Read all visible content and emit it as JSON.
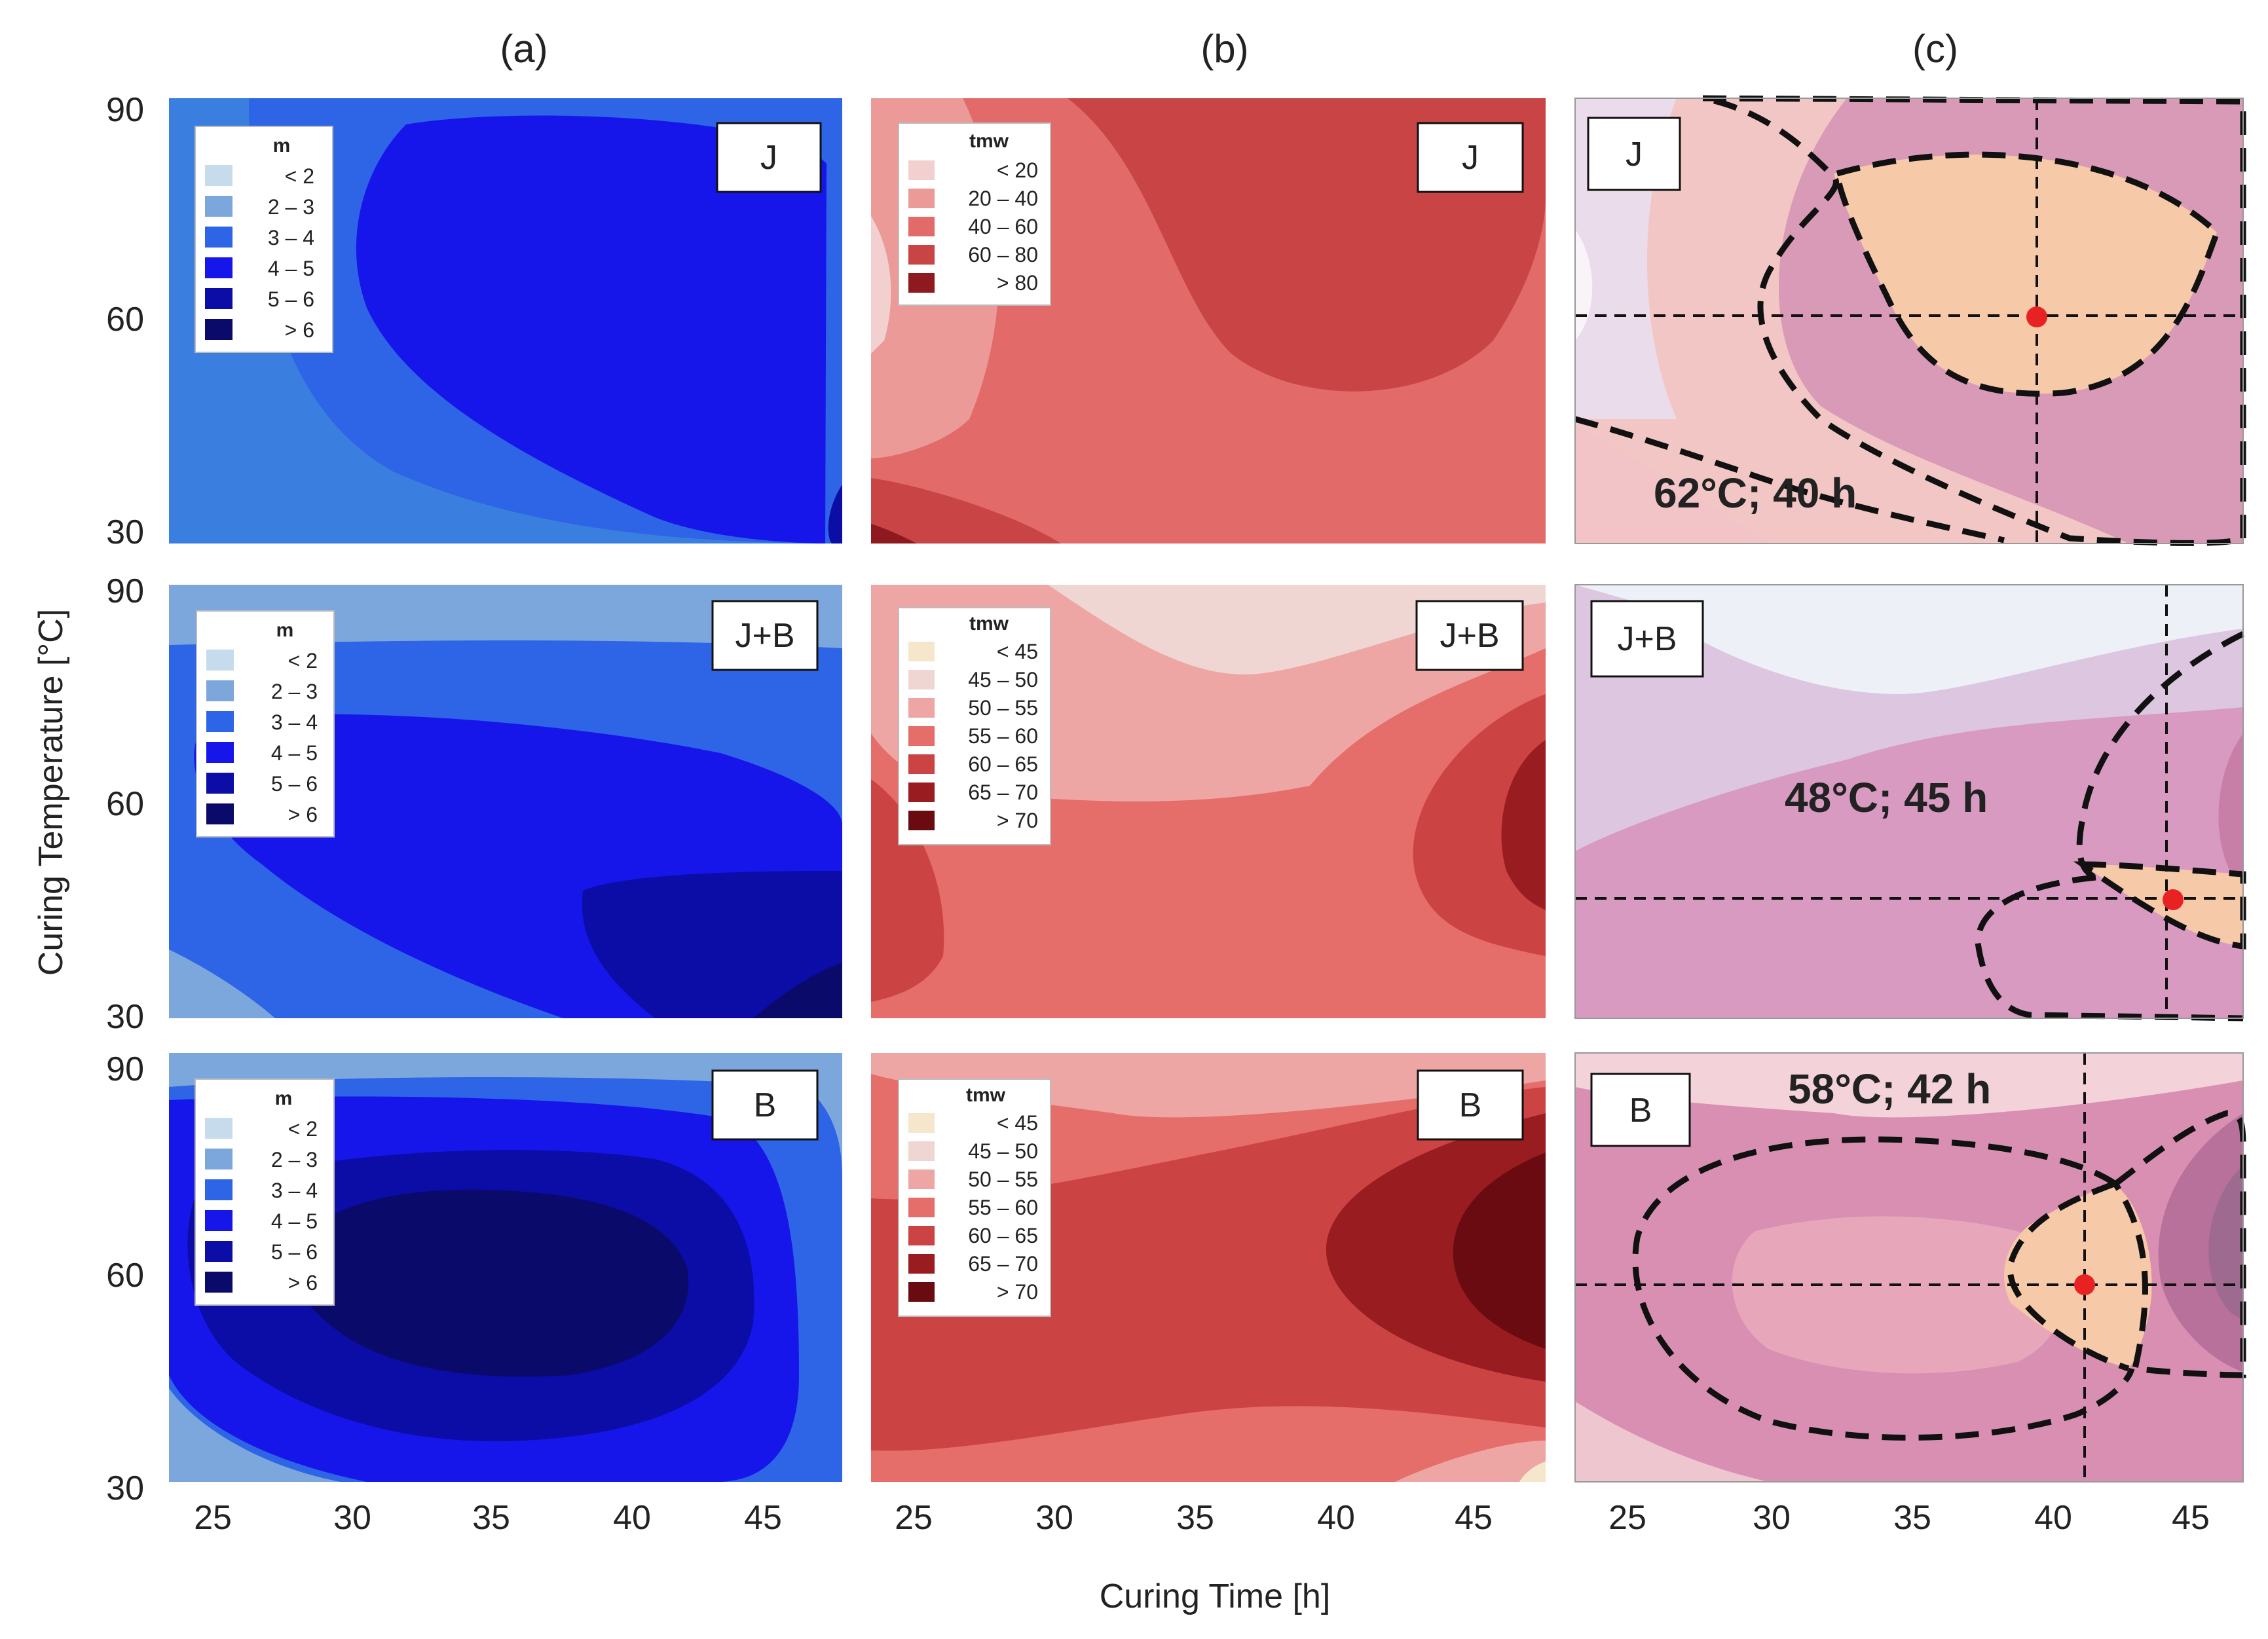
{
  "figure": {
    "column_labels": [
      "(a)",
      "(b)",
      "(c)"
    ],
    "xlabel": "Curing Time [h]",
    "ylabel": "Curing Temperature [°C]",
    "y_ticks": [
      "90",
      "60",
      "30"
    ],
    "x_ticks_ab": [
      "25",
      "30",
      "35",
      "40",
      "45"
    ],
    "x_ticks_c": [
      "25",
      "30",
      "35",
      "40",
      "45"
    ]
  },
  "legends": {
    "m": {
      "title": "m",
      "entries": [
        "< 2",
        "2 – 3",
        "3 – 4",
        "4 – 5",
        "5 – 6",
        "> 6"
      ],
      "colors": [
        "#c6dcec",
        "#7ba7dc",
        "#2e64e6",
        "#1616ea",
        "#0c0ca6",
        "#0a0a6a"
      ]
    },
    "tmw_J": {
      "title": "tmw",
      "entries": [
        "< 20",
        "20 – 40",
        "40 – 60",
        "60 – 80",
        "> 80"
      ],
      "colors": [
        "#f2d0cf",
        "#ec9a98",
        "#e26a68",
        "#c94444",
        "#8e1a1f"
      ]
    },
    "tmw_B": {
      "title": "tmw",
      "entries": [
        "< 45",
        "45 – 50",
        "50 – 55",
        "55 – 60",
        "60 – 65",
        "65 – 70",
        "> 70"
      ],
      "colors": [
        "#f6e6cc",
        "#f0d6d2",
        "#eda6a3",
        "#e56d6a",
        "#cc4343",
        "#991c20",
        "#6a0b12"
      ]
    }
  },
  "chart_data": [
    {
      "type": "heatmap",
      "panel": "a",
      "label": "J",
      "variable": "m",
      "xlim": [
        23.5,
        47.5
      ],
      "ylim": [
        30,
        90
      ],
      "description": "m contours; core 4–5 centered near 40 h, 60 °C"
    },
    {
      "type": "heatmap",
      "panel": "b",
      "label": "J",
      "variable": "tmw",
      "xlim": [
        23.5,
        47.5
      ],
      "ylim": [
        30,
        90
      ]
    },
    {
      "type": "heatmap",
      "panel": "c",
      "label": "J",
      "optimum_temperature_C": 62,
      "optimum_time_h": 40,
      "optimum_text": "62°C; 40 h",
      "point": {
        "x": 39.5,
        "y": 61
      }
    },
    {
      "type": "heatmap",
      "panel": "a",
      "label": "J+B",
      "variable": "m",
      "xlim": [
        23.5,
        47.5
      ],
      "ylim": [
        30,
        90
      ]
    },
    {
      "type": "heatmap",
      "panel": "b",
      "label": "J+B",
      "variable": "tmw",
      "xlim": [
        23.5,
        47.5
      ],
      "ylim": [
        30,
        90
      ]
    },
    {
      "type": "heatmap",
      "panel": "c",
      "label": "J+B",
      "optimum_temperature_C": 48,
      "optimum_time_h": 45,
      "optimum_text": "48°C; 45 h",
      "point": {
        "x": 44.3,
        "y": 47
      }
    },
    {
      "type": "heatmap",
      "panel": "a",
      "label": "B",
      "variable": "m",
      "xlim": [
        23.5,
        47.5
      ],
      "ylim": [
        30,
        90
      ]
    },
    {
      "type": "heatmap",
      "panel": "b",
      "label": "B",
      "variable": "tmw",
      "xlim": [
        23.5,
        47.5
      ],
      "ylim": [
        30,
        90
      ]
    },
    {
      "type": "heatmap",
      "panel": "c",
      "label": "B",
      "optimum_temperature_C": 58,
      "optimum_time_h": 42,
      "optimum_text": "58°C; 42 h",
      "point": {
        "x": 41.2,
        "y": 58
      }
    }
  ]
}
